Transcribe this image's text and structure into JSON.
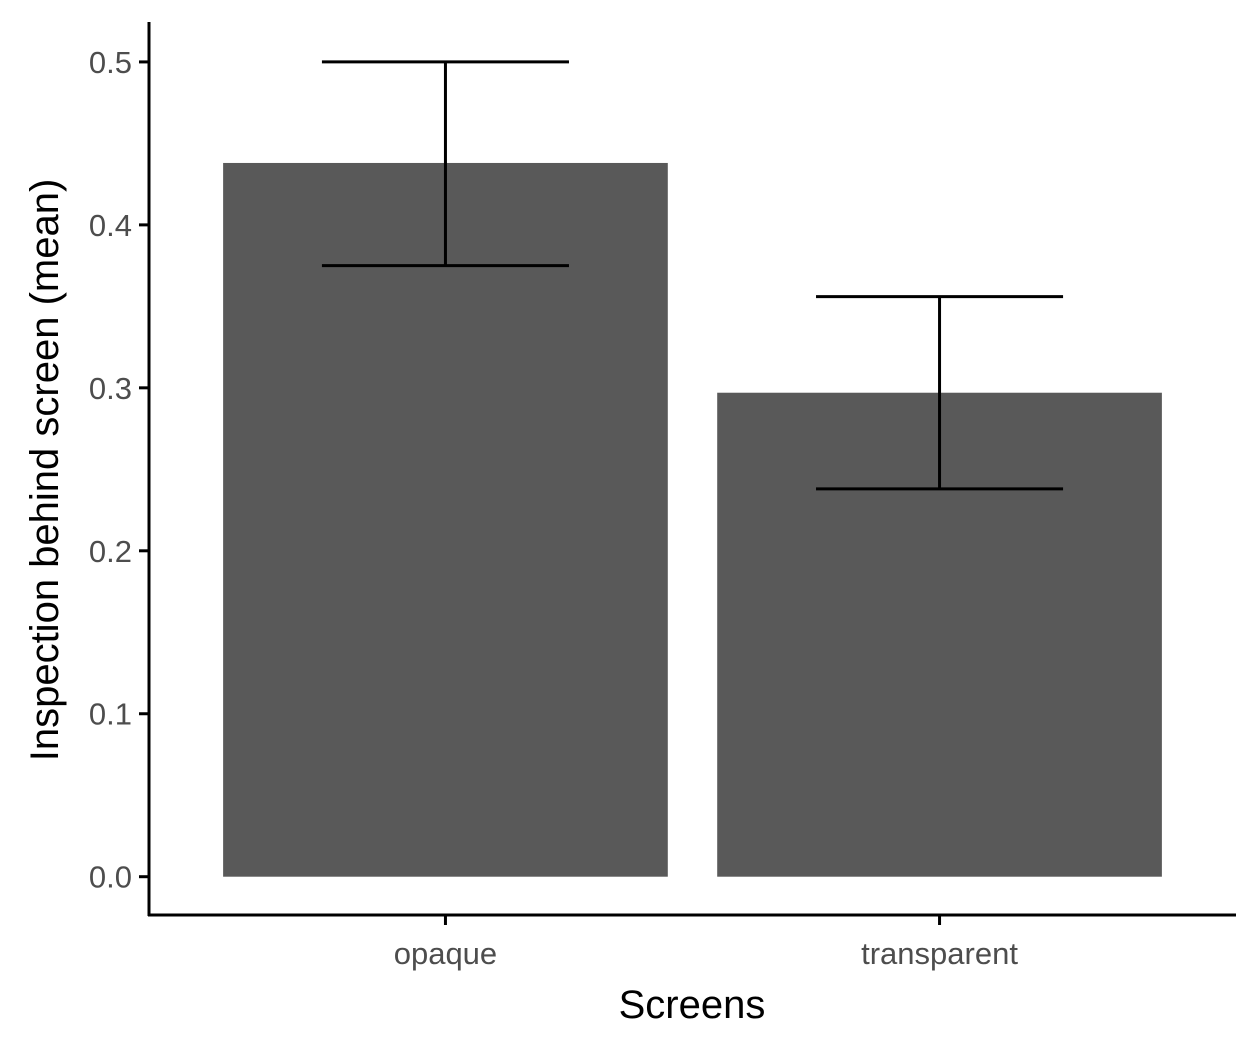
{
  "chart_data": {
    "type": "bar",
    "categories": [
      "opaque",
      "transparent"
    ],
    "values": [
      0.438,
      0.297
    ],
    "error_low": [
      0.375,
      0.238
    ],
    "error_high": [
      0.5,
      0.356
    ],
    "xlabel": "Screens",
    "ylabel": "Inspection behind screen (mean)",
    "ylim": [
      -0.0235,
      0.5245
    ],
    "yticks": [
      0.0,
      0.1,
      0.2,
      0.3,
      0.4,
      0.5
    ],
    "ytick_labels": [
      "0.0",
      "0.1",
      "0.2",
      "0.3",
      "0.4",
      "0.5"
    ],
    "grid": false,
    "legend": "none",
    "bar_color": "#595959",
    "axis_color": "#000000"
  }
}
